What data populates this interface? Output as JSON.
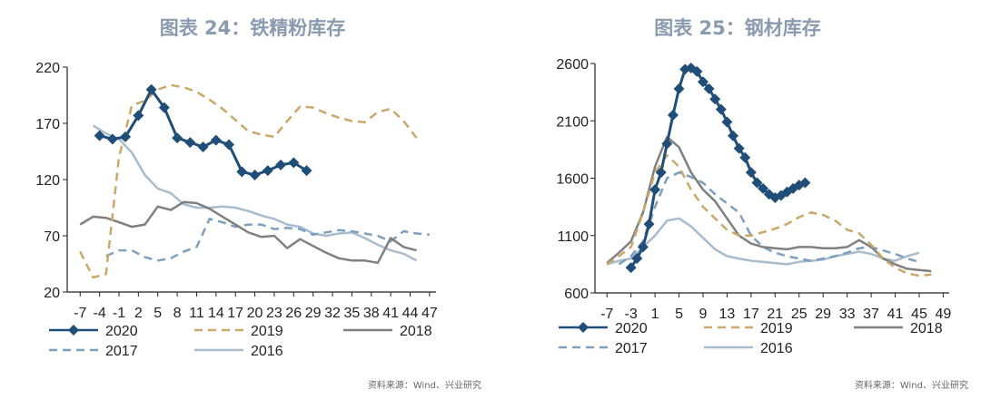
{
  "chart_data": [
    {
      "type": "line",
      "title": "图表 24：铁精粉库存",
      "source": "资料来源：Wind、兴业研究",
      "xlabel": "",
      "ylabel": "",
      "ylim": [
        20,
        220
      ],
      "yticks": [
        "220",
        "170",
        "120",
        "70",
        "20"
      ],
      "yticks_values": [
        220,
        170,
        120,
        70,
        20
      ],
      "xlim": [
        -9,
        48
      ],
      "xticks": [
        "-7",
        "-4",
        "-1",
        "2",
        "5",
        "8",
        "11",
        "14",
        "17",
        "20",
        "23",
        "26",
        "29",
        "32",
        "35",
        "38",
        "41",
        "44",
        "47"
      ],
      "xticks_values": [
        -7,
        -4,
        -1,
        2,
        5,
        8,
        11,
        14,
        17,
        20,
        23,
        26,
        29,
        32,
        35,
        38,
        41,
        44,
        47
      ],
      "grid": false,
      "legend_position": "bottom",
      "series": [
        {
          "name": "2020",
          "color": "#1f4e79",
          "style": "solid-marker",
          "x": [
            -4,
            -2,
            0,
            2,
            4,
            6,
            8,
            10,
            12,
            14,
            16,
            18,
            20,
            22,
            24,
            26,
            28
          ],
          "y": [
            159,
            156,
            158,
            177,
            200,
            184,
            157,
            153,
            149,
            155,
            151,
            127,
            124,
            128,
            133,
            135,
            128
          ]
        },
        {
          "name": "2019",
          "color": "#c9a86a",
          "style": "dashed",
          "x": [
            -7,
            -5,
            -3,
            -1,
            1,
            3,
            5,
            7,
            9,
            11,
            13,
            15,
            17,
            19,
            21,
            23,
            25,
            27,
            29,
            31,
            33,
            35,
            37,
            39,
            41,
            43,
            45
          ],
          "y": [
            56,
            33,
            36,
            140,
            186,
            190,
            200,
            204,
            202,
            198,
            191,
            183,
            173,
            163,
            160,
            158,
            172,
            185,
            184,
            179,
            175,
            172,
            171,
            180,
            183,
            172,
            157
          ]
        },
        {
          "name": "2018",
          "color": "#808080",
          "style": "solid",
          "x": [
            -7,
            -5,
            -3,
            -1,
            1,
            3,
            5,
            7,
            9,
            11,
            13,
            15,
            17,
            19,
            21,
            23,
            25,
            27,
            29,
            31,
            33,
            35,
            37,
            39,
            41,
            43,
            45
          ],
          "y": [
            80,
            87,
            86,
            82,
            78,
            80,
            96,
            93,
            100,
            99,
            94,
            87,
            80,
            73,
            69,
            70,
            59,
            67,
            61,
            55,
            50,
            48,
            48,
            46,
            68,
            60,
            57
          ]
        },
        {
          "name": "2017",
          "color": "#7f9fbf",
          "style": "dashed",
          "x": [
            -3,
            -1,
            1,
            3,
            5,
            7,
            9,
            11,
            13,
            15,
            17,
            19,
            21,
            23,
            25,
            27,
            29,
            31,
            33,
            35,
            37,
            39,
            41,
            43,
            45,
            47
          ],
          "y": [
            52,
            57,
            57,
            51,
            48,
            50,
            56,
            60,
            85,
            82,
            78,
            80,
            80,
            76,
            77,
            76,
            71,
            73,
            75,
            74,
            72,
            70,
            65,
            74,
            72,
            71
          ]
        },
        {
          "name": "2016",
          "color": "#a9bccc",
          "style": "solid",
          "x": [
            -5,
            -3,
            -1,
            1,
            3,
            5,
            7,
            9,
            11,
            13,
            15,
            17,
            19,
            21,
            23,
            25,
            27,
            29,
            31,
            33,
            35,
            37,
            39,
            41,
            43,
            45
          ],
          "y": [
            168,
            161,
            156,
            144,
            124,
            112,
            108,
            98,
            95,
            95,
            96,
            95,
            92,
            88,
            85,
            80,
            78,
            72,
            70,
            72,
            73,
            68,
            62,
            57,
            54,
            48
          ]
        }
      ]
    },
    {
      "type": "line",
      "title": "图表 25：钢材库存",
      "source": "资料来源：Wind、兴业研究",
      "xlabel": "",
      "ylabel": "",
      "ylim": [
        600,
        2600
      ],
      "yticks": [
        "2600",
        "2100",
        "1600",
        "1100",
        "600"
      ],
      "yticks_values": [
        2600,
        2100,
        1600,
        1100,
        600
      ],
      "xlim": [
        -9,
        50
      ],
      "xticks": [
        "-7",
        "-3",
        "1",
        "5",
        "9",
        "13",
        "17",
        "21",
        "25",
        "29",
        "33",
        "37",
        "41",
        "45",
        "49"
      ],
      "xticks_values": [
        -7,
        -3,
        1,
        5,
        9,
        13,
        17,
        21,
        25,
        29,
        33,
        37,
        41,
        45,
        49
      ],
      "grid": false,
      "legend_position": "bottom",
      "series": [
        {
          "name": "2020",
          "color": "#1f4e79",
          "style": "solid-marker",
          "x": [
            -3,
            -2,
            -1,
            0,
            1,
            2,
            3,
            4,
            5,
            6,
            7,
            8,
            9,
            10,
            11,
            12,
            13,
            14,
            15,
            16,
            17,
            18,
            19,
            20,
            21,
            22,
            23,
            24,
            25,
            26
          ],
          "y": [
            820,
            900,
            1000,
            1200,
            1500,
            1650,
            1900,
            2150,
            2380,
            2550,
            2560,
            2530,
            2440,
            2380,
            2290,
            2200,
            2090,
            1970,
            1860,
            1780,
            1650,
            1560,
            1510,
            1460,
            1430,
            1450,
            1480,
            1510,
            1540,
            1560
          ]
        },
        {
          "name": "2019",
          "color": "#c9a86a",
          "style": "dashed",
          "x": [
            -7,
            -5,
            -3,
            -1,
            1,
            3,
            5,
            7,
            9,
            11,
            13,
            15,
            17,
            19,
            21,
            23,
            25,
            27,
            29,
            31,
            33,
            35,
            37,
            39,
            41,
            43,
            45,
            47
          ],
          "y": [
            850,
            920,
            1000,
            1300,
            1650,
            1800,
            1700,
            1500,
            1350,
            1250,
            1150,
            1100,
            1100,
            1130,
            1160,
            1200,
            1260,
            1300,
            1280,
            1230,
            1150,
            1120,
            1020,
            900,
            820,
            770,
            750,
            760
          ]
        },
        {
          "name": "2018",
          "color": "#808080",
          "style": "solid",
          "x": [
            -7,
            -5,
            -3,
            -1,
            1,
            3,
            5,
            7,
            9,
            11,
            13,
            15,
            17,
            19,
            21,
            23,
            25,
            27,
            29,
            31,
            33,
            35,
            37,
            39,
            41,
            43,
            45,
            47
          ],
          "y": [
            860,
            950,
            1050,
            1300,
            1700,
            1960,
            1870,
            1650,
            1500,
            1400,
            1250,
            1100,
            1030,
            1000,
            990,
            980,
            1000,
            1000,
            990,
            990,
            1000,
            1060,
            1000,
            900,
            850,
            810,
            800,
            790
          ]
        },
        {
          "name": "2017",
          "color": "#7f9fbf",
          "style": "dashed",
          "x": [
            -5,
            -3,
            -1,
            1,
            3,
            5,
            7,
            9,
            11,
            13,
            15,
            17,
            19,
            21,
            23,
            25,
            27,
            29,
            31,
            33,
            35,
            37,
            39,
            41,
            43,
            45
          ],
          "y": [
            850,
            920,
            1050,
            1350,
            1600,
            1650,
            1610,
            1560,
            1460,
            1380,
            1300,
            1100,
            1000,
            950,
            920,
            900,
            880,
            900,
            920,
            950,
            990,
            1000,
            970,
            940,
            900,
            870
          ]
        },
        {
          "name": "2016",
          "color": "#a9bccc",
          "style": "solid",
          "x": [
            -7,
            -5,
            -3,
            -1,
            1,
            3,
            5,
            7,
            9,
            11,
            13,
            15,
            17,
            19,
            21,
            23,
            25,
            27,
            29,
            31,
            33,
            35,
            37,
            39,
            41,
            43,
            45
          ],
          "y": [
            850,
            880,
            900,
            1000,
            1100,
            1230,
            1250,
            1180,
            1080,
            980,
            920,
            900,
            880,
            870,
            860,
            850,
            870,
            880,
            890,
            920,
            940,
            960,
            940,
            900,
            880,
            920,
            950
          ]
        }
      ]
    }
  ]
}
